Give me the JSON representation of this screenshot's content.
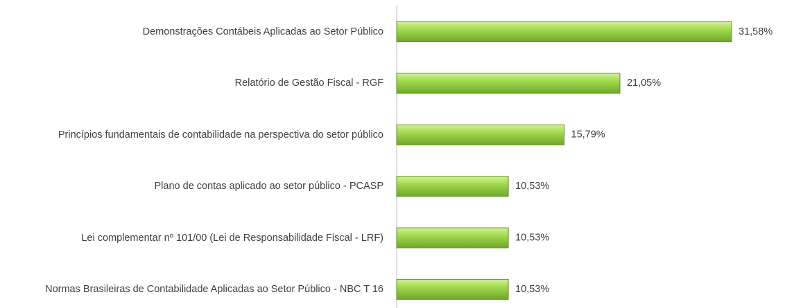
{
  "chart_data": {
    "type": "bar",
    "orientation": "horizontal",
    "categories": [
      "Demonstrações Contábeis Aplicadas ao Setor Público",
      "Relatório de Gestão Fiscal - RGF",
      "Princípios fundamentais de contabilidade na perspectiva do setor público",
      "Plano de contas aplicado ao setor público - PCASP",
      "Lei complementar nº 101/00 (Lei de Responsabilidade Fiscal - LRF)",
      "Normas Brasileiras de Contabilidade Aplicadas ao Setor Público - NBC T 16"
    ],
    "values": [
      31.58,
      21.05,
      15.79,
      10.53,
      10.53,
      10.53
    ],
    "value_labels": [
      "31,58%",
      "21,05%",
      "15,79%",
      "10,53%",
      "10,53%",
      "10,53%"
    ],
    "color": "#8fcc3c"
  }
}
